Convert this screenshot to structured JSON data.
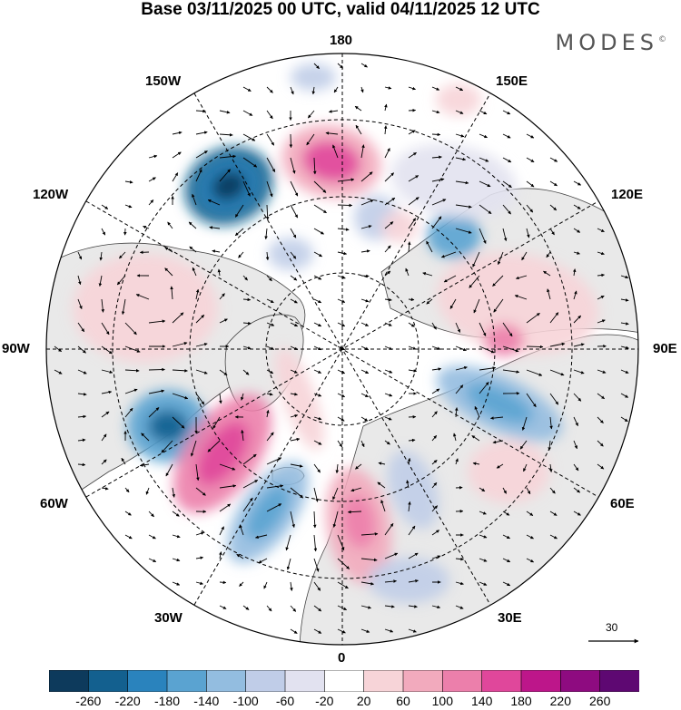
{
  "title": "Base 03/11/2025 00 UTC, valid 04/11/2025 12 UTC",
  "logo": "MODES",
  "logo_mark": "©",
  "longitude_labels": {
    "top": "180",
    "bottom": "0",
    "left": "90W",
    "right": "90E",
    "upper_left_1": "150W",
    "upper_left_2": "120W",
    "upper_right_1": "150E",
    "upper_right_2": "120E",
    "lower_left_1": "60W",
    "lower_left_2": "30W",
    "lower_right_1": "60E",
    "lower_right_2": "30E"
  },
  "vector_scale": {
    "label": "30"
  },
  "colorbar": {
    "ticks": [
      "-260",
      "-220",
      "-180",
      "-140",
      "-100",
      "-60",
      "-20",
      "20",
      "60",
      "100",
      "140",
      "180",
      "220",
      "260"
    ],
    "colors": [
      "#0d3a5c",
      "#13608f",
      "#2a83bd",
      "#5aa3d1",
      "#93bde0",
      "#c0cde8",
      "#e2e2f0",
      "#ffffff",
      "#f7d4d8",
      "#f2aabd",
      "#ec7fab",
      "#e0479b",
      "#bd168a",
      "#8e0b80",
      "#5e0872"
    ]
  },
  "map": {
    "ocean_color": "#ffffff",
    "land_color": "#e9e9e9",
    "projection": "north polar stereographic"
  }
}
